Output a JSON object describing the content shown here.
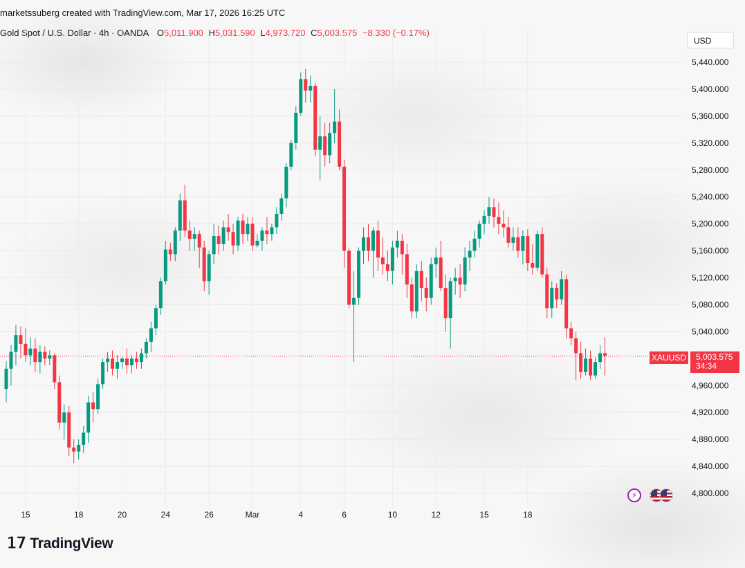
{
  "header": {
    "text": "marketssuberg created with TradingView.com, Mar 17, 2026 16:25 UTC"
  },
  "legend": {
    "symbol": "Gold Spot / U.S. Dollar · 4h · OANDA",
    "open_label": "O",
    "open": "5,011.900",
    "high_label": "H",
    "high": "5,031.590",
    "low_label": "L",
    "low": "4,973.720",
    "close_label": "C",
    "close": "5,003.575",
    "change": "−8.330 (−0.17%)"
  },
  "currency": "USD",
  "price_tag": {
    "symbol": "XAUUSD",
    "price": "5,003.575",
    "countdown": "34:34"
  },
  "brand": {
    "logo": "tradingview-logo",
    "name": "TradingView"
  },
  "events": [
    {
      "icon": "flash-icon"
    },
    {
      "icon": "us-flag-icon"
    },
    {
      "icon": "us-flag-icon"
    }
  ],
  "colors": {
    "up": "#089981",
    "down": "#f23645",
    "grid": "#e8e8e8",
    "last_price_line": "#f23645"
  },
  "chart_data": {
    "type": "candlestick",
    "interval": "4h",
    "y_axis": {
      "ticks": [
        "5,440.000",
        "5,400.000",
        "5,360.000",
        "5,320.000",
        "5,280.000",
        "5,240.000",
        "5,200.000",
        "5,160.000",
        "5,120.000",
        "5,080.000",
        "5,040.000",
        "4,960.000",
        "4,920.000",
        "4,880.000",
        "4,840.000",
        "4,800.000"
      ],
      "tick_values": [
        5440,
        5400,
        5360,
        5320,
        5280,
        5240,
        5200,
        5160,
        5120,
        5080,
        5040,
        4960,
        4920,
        4880,
        4840,
        4800
      ],
      "ylim": [
        4785,
        5485
      ]
    },
    "x_axis": {
      "labels": [
        "15",
        "18",
        "20",
        "24",
        "26",
        "Mar",
        "4",
        "6",
        "10",
        "12",
        "15",
        "18"
      ],
      "label_bar_index": [
        4,
        15,
        24,
        33,
        42,
        51,
        61,
        70,
        80,
        89,
        99,
        108
      ]
    },
    "last_price": 5003.575,
    "ohlc": [
      [
        4955,
        4996,
        4935,
        4985
      ],
      [
        4985,
        5020,
        4960,
        5010
      ],
      [
        5010,
        5050,
        4990,
        5035
      ],
      [
        5035,
        5048,
        5000,
        5022
      ],
      [
        5022,
        5045,
        4995,
        5005
      ],
      [
        5005,
        5032,
        4990,
        5015
      ],
      [
        5015,
        5030,
        4980,
        4995
      ],
      [
        4995,
        5020,
        4978,
        5010
      ],
      [
        5010,
        5018,
        4990,
        5000
      ],
      [
        5000,
        5012,
        4990,
        5005
      ],
      [
        5005,
        5008,
        4955,
        4965
      ],
      [
        4965,
        4975,
        4895,
        4905
      ],
      [
        4905,
        4932,
        4880,
        4920
      ],
      [
        4920,
        4930,
        4855,
        4868
      ],
      [
        4868,
        4880,
        4845,
        4862
      ],
      [
        4862,
        4880,
        4850,
        4872
      ],
      [
        4872,
        4900,
        4860,
        4890
      ],
      [
        4890,
        4945,
        4875,
        4935
      ],
      [
        4935,
        4950,
        4905,
        4925
      ],
      [
        4925,
        4970,
        4918,
        4962
      ],
      [
        4962,
        5000,
        4955,
        4995
      ],
      [
        4995,
        5010,
        4980,
        5000
      ],
      [
        5000,
        5012,
        4975,
        4985
      ],
      [
        4985,
        5005,
        4970,
        4995
      ],
      [
        4995,
        5002,
        4985,
        5000
      ],
      [
        5000,
        5015,
        4978,
        4990
      ],
      [
        4990,
        5005,
        4978,
        5000
      ],
      [
        5000,
        5010,
        4985,
        4995
      ],
      [
        4995,
        5015,
        4985,
        5008
      ],
      [
        5008,
        5030,
        5000,
        5025
      ],
      [
        5025,
        5055,
        5010,
        5045
      ],
      [
        5045,
        5080,
        5035,
        5075
      ],
      [
        5075,
        5120,
        5065,
        5115
      ],
      [
        5115,
        5175,
        5110,
        5162
      ],
      [
        5162,
        5172,
        5145,
        5155
      ],
      [
        5155,
        5195,
        5145,
        5190
      ],
      [
        5190,
        5245,
        5175,
        5235
      ],
      [
        5235,
        5258,
        5180,
        5190
      ],
      [
        5190,
        5205,
        5160,
        5178
      ],
      [
        5178,
        5195,
        5160,
        5185
      ],
      [
        5185,
        5190,
        5135,
        5165
      ],
      [
        5165,
        5175,
        5100,
        5115
      ],
      [
        5115,
        5160,
        5095,
        5155
      ],
      [
        5155,
        5200,
        5140,
        5182
      ],
      [
        5182,
        5198,
        5155,
        5170
      ],
      [
        5170,
        5205,
        5160,
        5195
      ],
      [
        5195,
        5215,
        5175,
        5188
      ],
      [
        5188,
        5200,
        5155,
        5168
      ],
      [
        5168,
        5210,
        5160,
        5205
      ],
      [
        5205,
        5215,
        5170,
        5185
      ],
      [
        5185,
        5210,
        5175,
        5200
      ],
      [
        5200,
        5210,
        5160,
        5168
      ],
      [
        5168,
        5185,
        5165,
        5175
      ],
      [
        5175,
        5195,
        5160,
        5190
      ],
      [
        5190,
        5210,
        5170,
        5185
      ],
      [
        5185,
        5200,
        5175,
        5195
      ],
      [
        5195,
        5225,
        5185,
        5215
      ],
      [
        5215,
        5245,
        5205,
        5238
      ],
      [
        5238,
        5290,
        5225,
        5285
      ],
      [
        5285,
        5325,
        5280,
        5320
      ],
      [
        5320,
        5375,
        5310,
        5365
      ],
      [
        5365,
        5425,
        5360,
        5415
      ],
      [
        5415,
        5430,
        5380,
        5398
      ],
      [
        5398,
        5420,
        5380,
        5405
      ],
      [
        5405,
        5410,
        5300,
        5310
      ],
      [
        5310,
        5360,
        5265,
        5330
      ],
      [
        5330,
        5350,
        5285,
        5302
      ],
      [
        5302,
        5350,
        5290,
        5335
      ],
      [
        5335,
        5400,
        5320,
        5352
      ],
      [
        5352,
        5370,
        5280,
        5285
      ],
      [
        5285,
        5295,
        5135,
        5160
      ],
      [
        5160,
        5165,
        5075,
        5080
      ],
      [
        5080,
        5130,
        4995,
        5090
      ],
      [
        5090,
        5165,
        5080,
        5160
      ],
      [
        5160,
        5195,
        5140,
        5180
      ],
      [
        5180,
        5200,
        5145,
        5160
      ],
      [
        5160,
        5195,
        5120,
        5190
      ],
      [
        5190,
        5205,
        5130,
        5150
      ],
      [
        5150,
        5180,
        5125,
        5140
      ],
      [
        5140,
        5160,
        5115,
        5130
      ],
      [
        5130,
        5175,
        5110,
        5165
      ],
      [
        5165,
        5190,
        5150,
        5175
      ],
      [
        5175,
        5185,
        5125,
        5155
      ],
      [
        5155,
        5170,
        5090,
        5110
      ],
      [
        5110,
        5120,
        5060,
        5070
      ],
      [
        5070,
        5140,
        5060,
        5130
      ],
      [
        5130,
        5145,
        5085,
        5105
      ],
      [
        5105,
        5120,
        5070,
        5090
      ],
      [
        5090,
        5150,
        5080,
        5140
      ],
      [
        5140,
        5165,
        5120,
        5150
      ],
      [
        5150,
        5175,
        5100,
        5105
      ],
      [
        5105,
        5125,
        5040,
        5060
      ],
      [
        5060,
        5120,
        5015,
        5115
      ],
      [
        5115,
        5135,
        5095,
        5120
      ],
      [
        5120,
        5140,
        5090,
        5110
      ],
      [
        5110,
        5165,
        5100,
        5150
      ],
      [
        5150,
        5175,
        5130,
        5160
      ],
      [
        5160,
        5190,
        5150,
        5178
      ],
      [
        5178,
        5205,
        5165,
        5200
      ],
      [
        5200,
        5220,
        5185,
        5212
      ],
      [
        5212,
        5240,
        5200,
        5225
      ],
      [
        5225,
        5238,
        5195,
        5210
      ],
      [
        5210,
        5232,
        5185,
        5200
      ],
      [
        5200,
        5220,
        5180,
        5195
      ],
      [
        5195,
        5210,
        5165,
        5172
      ],
      [
        5172,
        5195,
        5160,
        5180
      ],
      [
        5180,
        5195,
        5150,
        5160
      ],
      [
        5160,
        5190,
        5140,
        5182
      ],
      [
        5182,
        5192,
        5130,
        5142
      ],
      [
        5142,
        5170,
        5125,
        5135
      ],
      [
        5135,
        5190,
        5130,
        5185
      ],
      [
        5185,
        5195,
        5120,
        5125
      ],
      [
        5125,
        5135,
        5060,
        5075
      ],
      [
        5075,
        5115,
        5060,
        5105
      ],
      [
        5105,
        5112,
        5075,
        5088
      ],
      [
        5088,
        5130,
        5080,
        5118
      ],
      [
        5118,
        5125,
        5030,
        5045
      ],
      [
        5045,
        5055,
        5020,
        5030
      ],
      [
        5030,
        5040,
        4968,
        5008
      ],
      [
        5008,
        5025,
        4970,
        4980
      ],
      [
        4980,
        5015,
        4975,
        5000
      ],
      [
        5000,
        5012,
        4968,
        4975
      ],
      [
        4975,
        5002,
        4970,
        4995
      ],
      [
        4995,
        5020,
        4985,
        5008
      ],
      [
        5008,
        5032,
        4974,
        5004
      ]
    ]
  }
}
